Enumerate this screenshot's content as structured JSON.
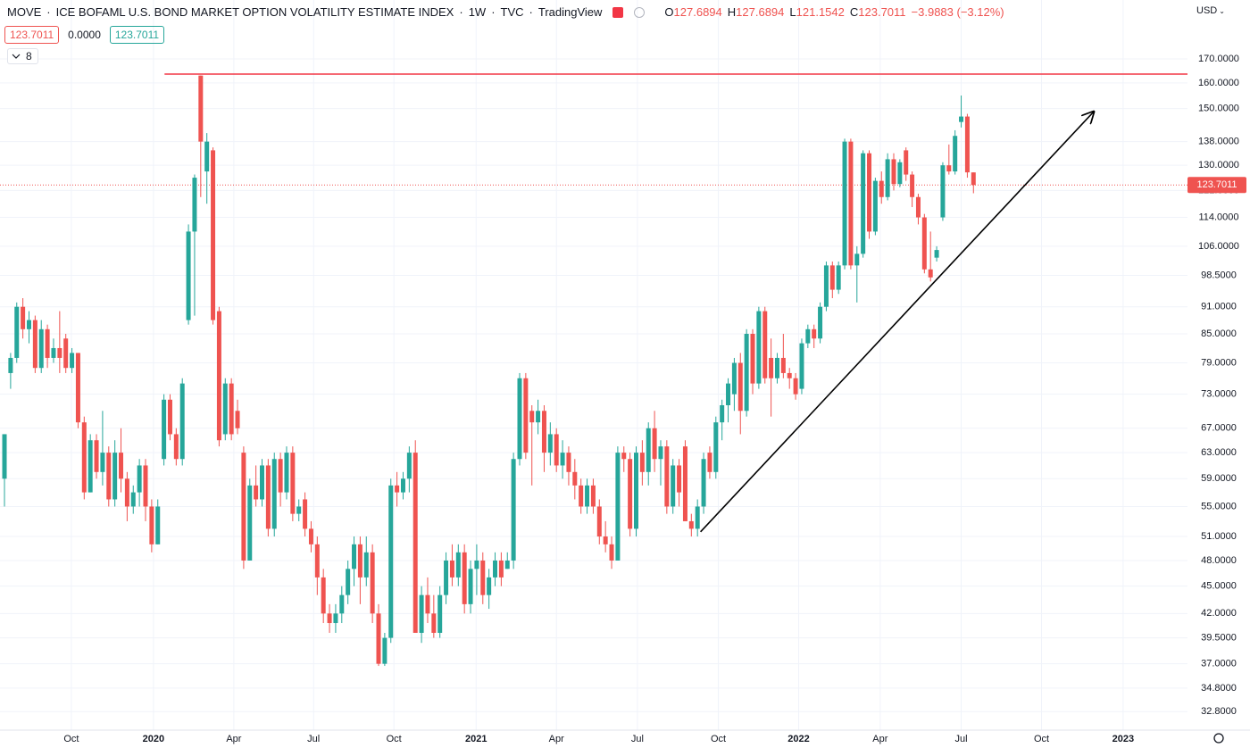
{
  "header": {
    "symbol": "MOVE",
    "name": "ICE BOFAML U.S. BOND MARKET OPTION VOLATILITY ESTIMATE INDEX",
    "interval": "1W",
    "exchange": "TVC",
    "source": "TradingView",
    "ohlc": [
      {
        "label": "O",
        "value": "127.6894"
      },
      {
        "label": "H",
        "value": "127.6894"
      },
      {
        "label": "L",
        "value": "121.1542"
      },
      {
        "label": "C",
        "value": "123.7011"
      }
    ],
    "change": "−3.9883 (−3.12%)",
    "bid": "123.7011",
    "spread": "0.0000",
    "ask": "123.7011",
    "indicators": "8",
    "currency": "USD"
  },
  "chart_data": {
    "type": "candlestick",
    "log": true,
    "grid": true,
    "up_color": "#26a69a",
    "down_color": "#ef5350",
    "xlim": [
      -0.73,
      192.9
    ],
    "ylim": [
      31.3,
      197.2
    ],
    "xticks": [
      {
        "value": 10.9,
        "label": "Oct"
      },
      {
        "value": 24.3,
        "label": "2020"
      },
      {
        "value": 37.4,
        "label": "Apr"
      },
      {
        "value": 50.4,
        "label": "Jul"
      },
      {
        "value": 63.5,
        "label": "Oct"
      },
      {
        "value": 76.9,
        "label": "2021"
      },
      {
        "value": 90,
        "label": "Apr"
      },
      {
        "value": 103.2,
        "label": "Jul"
      },
      {
        "value": 116.4,
        "label": "Oct"
      },
      {
        "value": 129.5,
        "label": "2022"
      },
      {
        "value": 142.8,
        "label": "Apr"
      },
      {
        "value": 156,
        "label": "Jul"
      },
      {
        "value": 169.1,
        "label": "Oct"
      },
      {
        "value": 182.4,
        "label": "2023"
      }
    ],
    "yticks": [
      {
        "value": 32.8,
        "label": "32.8000"
      },
      {
        "value": 34.8,
        "label": "34.8000"
      },
      {
        "value": 37,
        "label": "37.0000"
      },
      {
        "value": 39.5,
        "label": "39.5000"
      },
      {
        "value": 42,
        "label": "42.0000"
      },
      {
        "value": 45,
        "label": "45.0000"
      },
      {
        "value": 48,
        "label": "48.0000"
      },
      {
        "value": 51,
        "label": "51.0000"
      },
      {
        "value": 55,
        "label": "55.0000"
      },
      {
        "value": 59,
        "label": "59.0000"
      },
      {
        "value": 63,
        "label": "63.0000"
      },
      {
        "value": 67,
        "label": "67.0000"
      },
      {
        "value": 73,
        "label": "73.0000"
      },
      {
        "value": 79,
        "label": "79.0000"
      },
      {
        "value": 85,
        "label": "85.0000"
      },
      {
        "value": 91,
        "label": "91.0000"
      },
      {
        "value": 98.5,
        "label": "98.5000"
      },
      {
        "value": 106,
        "label": "106.0000"
      },
      {
        "value": 114,
        "label": "114.0000"
      },
      {
        "value": 122,
        "label": "122.0000"
      },
      {
        "value": 130,
        "label": "130.0000"
      },
      {
        "value": 138,
        "label": "138.0000"
      },
      {
        "value": 150,
        "label": "150.0000"
      },
      {
        "value": 160,
        "label": "160.0000"
      },
      {
        "value": 170,
        "label": "170.0000"
      }
    ],
    "open": [
      59,
      77,
      80,
      91,
      86,
      88,
      78,
      86,
      80,
      82,
      84,
      78,
      81,
      68,
      57,
      65,
      60,
      63,
      56,
      63,
      59,
      55,
      57,
      61,
      55,
      50,
      62,
      72,
      66,
      62,
      88,
      110,
      163,
      128,
      135,
      90,
      66,
      75,
      70,
      63,
      48,
      58,
      56,
      61,
      52,
      62,
      57,
      63,
      54,
      56,
      52,
      50,
      46,
      42,
      41,
      42,
      44,
      47,
      50,
      46,
      49,
      42,
      37,
      39.5,
      58,
      57,
      59,
      63,
      40,
      44,
      42,
      40,
      44,
      48,
      46,
      49,
      43,
      47,
      48,
      44,
      46,
      48,
      47,
      48,
      62,
      76,
      70,
      68,
      70,
      63,
      66,
      61,
      63,
      60,
      58,
      55,
      58,
      55,
      51,
      50,
      48,
      63,
      62,
      52,
      63,
      60,
      67,
      62,
      64,
      55,
      61,
      64,
      53,
      52,
      55,
      63,
      60,
      68,
      71,
      73,
      79,
      70,
      85,
      75,
      90,
      80,
      76,
      80,
      77,
      76,
      74,
      83,
      86,
      84,
      91,
      101,
      95,
      101,
      138,
      101,
      104,
      134,
      110,
      125,
      120,
      132,
      124,
      135,
      127,
      120,
      114,
      100,
      103,
      114,
      130,
      128,
      145,
      147,
      127.6894
    ],
    "high": [
      66,
      81,
      92,
      93,
      90,
      89,
      88,
      87,
      84,
      90,
      85,
      82,
      81,
      69,
      66,
      66,
      70,
      64,
      65,
      67,
      60,
      58,
      62,
      62,
      56,
      56,
      73,
      73,
      67,
      76,
      112,
      127,
      163,
      141,
      136,
      91,
      76,
      76,
      72,
      64,
      59,
      61,
      62,
      62,
      63,
      63,
      64,
      64,
      56,
      57,
      53,
      51,
      47,
      43,
      43,
      45,
      48,
      51,
      51,
      51,
      50,
      43,
      40,
      59,
      60,
      60,
      64,
      65,
      45,
      46,
      44,
      45,
      49,
      50,
      50,
      50,
      48,
      50,
      49,
      47,
      49,
      49,
      49,
      63,
      77,
      77,
      71,
      72,
      71,
      68,
      67,
      65,
      64,
      62,
      59,
      59,
      59,
      56,
      53,
      51,
      64,
      64,
      63,
      64,
      65,
      68,
      70,
      65,
      65,
      62,
      62,
      65,
      54,
      56,
      63,
      64,
      69,
      72,
      76,
      80,
      81,
      86,
      86,
      91,
      91,
      84,
      81,
      85,
      78,
      77,
      84,
      87,
      87,
      92,
      102,
      102,
      102,
      139,
      139,
      106,
      135,
      135,
      126,
      128,
      134,
      134,
      132,
      136,
      128,
      121,
      115,
      110,
      106,
      131,
      137,
      142,
      155,
      148,
      127.6894
    ],
    "low": [
      55,
      74,
      79,
      84,
      83,
      77,
      77,
      78,
      79,
      77,
      77,
      77,
      67,
      56,
      57,
      59,
      58,
      55,
      55,
      57,
      53,
      54,
      55,
      53,
      49,
      50,
      61,
      65,
      61,
      61,
      87,
      89,
      120,
      118,
      87,
      64,
      65,
      65,
      66,
      47,
      48,
      55,
      55,
      51,
      51,
      55,
      56,
      53,
      53,
      51,
      49,
      44,
      41,
      40,
      40,
      41,
      43,
      45,
      43,
      45,
      41,
      36.8,
      36.8,
      39,
      55,
      56,
      57,
      40,
      39,
      41,
      39.5,
      39.5,
      43,
      45,
      45,
      42,
      42,
      44,
      43,
      42.5,
      45,
      45,
      47,
      47,
      61,
      62,
      58,
      66,
      60,
      61,
      60,
      59,
      58,
      56,
      54,
      54,
      54,
      50,
      49,
      47,
      48,
      60,
      51,
      51,
      58,
      58,
      60,
      58,
      54,
      54,
      55,
      53,
      51,
      51,
      54,
      59,
      59,
      65,
      68,
      70,
      66,
      69,
      73,
      74,
      75,
      69,
      75,
      76,
      74,
      72,
      73,
      82,
      82,
      83,
      90,
      93,
      94,
      100,
      100,
      92,
      103,
      108,
      109,
      118,
      119,
      122,
      123,
      125,
      117,
      112,
      99,
      97,
      102,
      113,
      127,
      127,
      143,
      126,
      121.1542
    ],
    "close": [
      66,
      80,
      91,
      86,
      88,
      78,
      86,
      80,
      82,
      80,
      78,
      81,
      68,
      57,
      65,
      60,
      63,
      56,
      63,
      59,
      55,
      57,
      61,
      55,
      50,
      55,
      72,
      66,
      62,
      75,
      110,
      126,
      138,
      138,
      88,
      65,
      75,
      66,
      67,
      48,
      58,
      56,
      61,
      52,
      62,
      57,
      63,
      54,
      55,
      52,
      50,
      46,
      42,
      41,
      42,
      44,
      47,
      50,
      46,
      49,
      42,
      37,
      39.5,
      58,
      57,
      59,
      63,
      40,
      44,
      42,
      40,
      44,
      48,
      46,
      49,
      43,
      47,
      48,
      44,
      46,
      48,
      46,
      48,
      62,
      76,
      63,
      68,
      70,
      63,
      66,
      61,
      63,
      60,
      58,
      55,
      58,
      55,
      51,
      50,
      48,
      63,
      62,
      52,
      63,
      60,
      67,
      62,
      64,
      55,
      61,
      57,
      53,
      52,
      55,
      62,
      60,
      68,
      71,
      75,
      79,
      70,
      85,
      75,
      90,
      76,
      76,
      80,
      77,
      76,
      73,
      83,
      86,
      84,
      91,
      101,
      95,
      101,
      138,
      101,
      104,
      134,
      110,
      125,
      120,
      132,
      124,
      131,
      127,
      120,
      114,
      100,
      98,
      105,
      130,
      128,
      140,
      147,
      127.7,
      123.7011
    ],
    "last_price": 123.7011,
    "hline": {
      "value": 163.6,
      "start": 26.1,
      "color": "#f23645"
    },
    "trend_line": {
      "x": [
        113.5,
        177.6
      ],
      "y": [
        51.6,
        148.8
      ],
      "color": "#000000"
    }
  }
}
